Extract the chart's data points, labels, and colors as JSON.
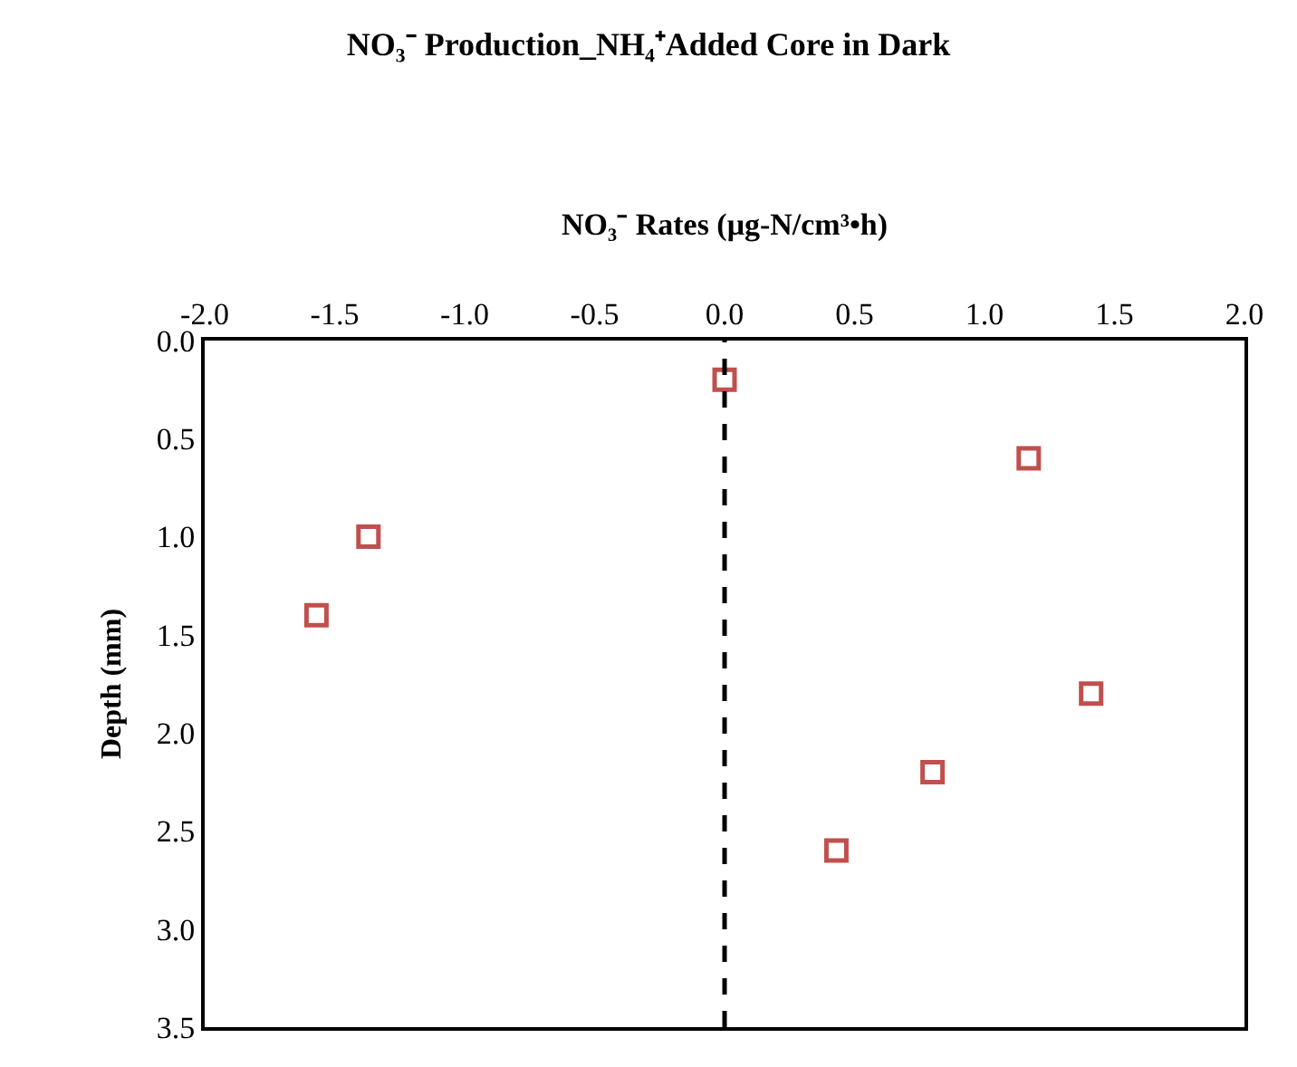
{
  "chart_data": {
    "type": "scatter",
    "title": "NO₃⁻ Production_NH₄⁺Added Core in Dark",
    "xlabel": "NO₃⁻ Rates (μg-N/cm³•h)",
    "ylabel": "Depth (mm)",
    "x": [
      0.0,
      1.17,
      -1.37,
      -1.57,
      1.41,
      0.8,
      0.43
    ],
    "series": [
      {
        "color": "#c0504d",
        "values": [
          0.2,
          0.6,
          1.0,
          1.4,
          1.8,
          2.2,
          2.6
        ]
      }
    ],
    "xlim": [
      -2.0,
      2.0
    ],
    "xticks": [
      {
        "value": -2,
        "label": "-2.0"
      },
      {
        "value": -1.5,
        "label": "-1.5"
      },
      {
        "value": -1,
        "label": "-1.0"
      },
      {
        "value": -0.5,
        "label": "-0.5"
      },
      {
        "value": 0,
        "label": "0.0"
      },
      {
        "value": 0.5,
        "label": "0.5"
      },
      {
        "value": 1,
        "label": "1.0"
      },
      {
        "value": 1.5,
        "label": "1.5"
      },
      {
        "value": 2,
        "label": "2.0"
      }
    ],
    "ylim": [
      3.5,
      0.0
    ],
    "yticks": [
      {
        "value": 0,
        "label": "0.0"
      },
      {
        "value": 0.5,
        "label": "0.5"
      },
      {
        "value": 1,
        "label": "1.0"
      },
      {
        "value": 1.5,
        "label": "1.5"
      },
      {
        "value": 2,
        "label": "2.0"
      },
      {
        "value": 2.5,
        "label": "2.5"
      },
      {
        "value": 3,
        "label": "3.0"
      },
      {
        "value": 3.5,
        "label": "3.5"
      }
    ],
    "ref_lines": [
      {
        "axis": "x",
        "value": 0,
        "color": "#000000",
        "line_style": "dashed"
      }
    ],
    "marker": "square"
  }
}
